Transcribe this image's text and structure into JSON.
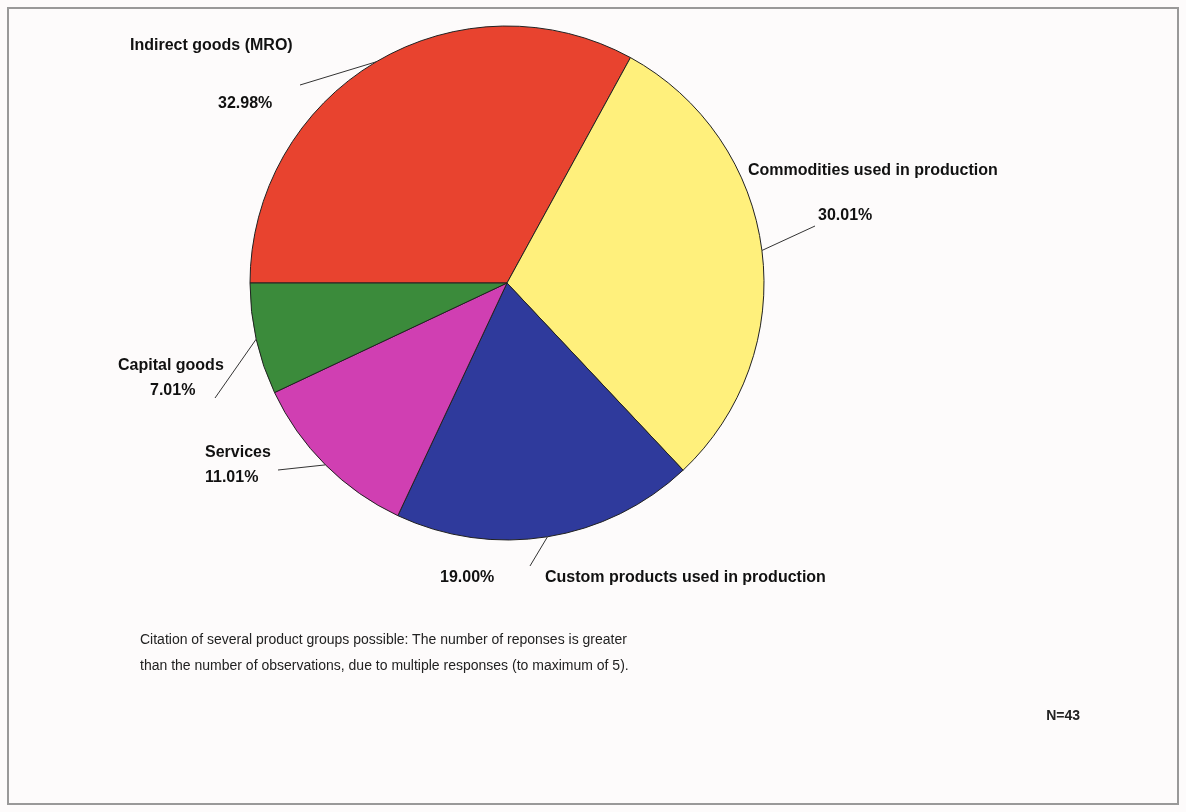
{
  "chart_data": {
    "type": "pie",
    "categories": [
      "Indirect goods  (MRO)",
      "Commodities used in production",
      "Custom products used in production",
      "Services",
      "Capital goods"
    ],
    "values": [
      32.98,
      30.01,
      19.0,
      11.01,
      7.01
    ],
    "value_labels": [
      "32.98%",
      "30.01%",
      "19.00%",
      "11.01%",
      "7.01%"
    ],
    "colors": [
      "#e8432f",
      "#fff07c",
      "#2f3a9c",
      "#d03fb2",
      "#3b8b3b"
    ],
    "annotations": [
      "Citation of several product groups possible: The number of reponses is greater\nthan  the number of observations, due to multiple responses (to maximum of 5).",
      "N=43"
    ]
  }
}
